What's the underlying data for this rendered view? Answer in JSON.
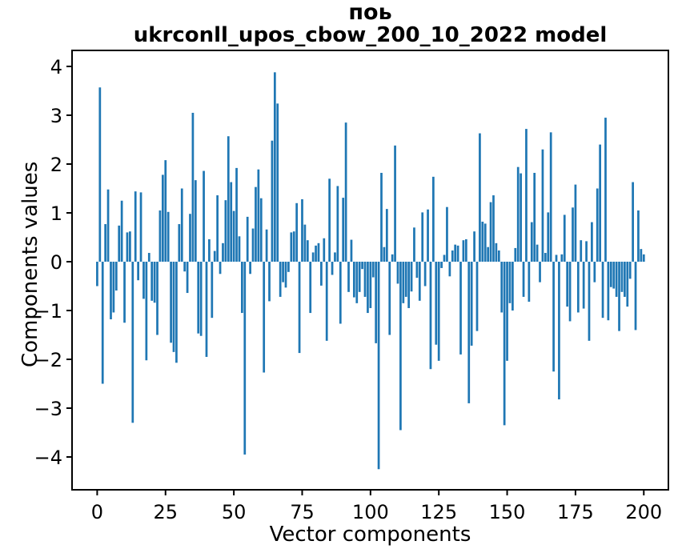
{
  "figure": {
    "title_line1": "поь",
    "title_line2": "ukrconll_upos_cbow_200_10_2022 model"
  },
  "chart_data": {
    "type": "bar",
    "title": "поь — ukrconll_upos_cbow_200_10_2022 model",
    "xlabel": "Vector components",
    "ylabel": "Components values",
    "bar_color": "#1f77b4",
    "axis_color": "#000000",
    "background_color": "#ffffff",
    "grid": false,
    "legend": null,
    "xlim": [
      -9.2,
      209.0
    ],
    "ylim": [
      -4.672,
      4.328
    ],
    "xticks": [
      0,
      25,
      50,
      75,
      100,
      125,
      150,
      175,
      200
    ],
    "yticks": [
      -4,
      -3,
      -2,
      -1,
      0,
      1,
      2,
      3,
      4
    ],
    "x_start_index": 0,
    "values": [
      -0.5,
      3.57,
      -2.5,
      0.77,
      1.48,
      -1.18,
      -1.04,
      -0.59,
      0.74,
      1.25,
      -1.25,
      0.6,
      0.62,
      -3.3,
      1.44,
      -0.38,
      1.42,
      -0.76,
      -2.02,
      0.18,
      -0.8,
      -0.84,
      -1.5,
      1.05,
      1.78,
      2.08,
      1.02,
      -1.66,
      -1.85,
      -2.07,
      0.77,
      1.5,
      -0.2,
      -0.64,
      0.98,
      3.05,
      1.67,
      -1.47,
      -1.52,
      1.86,
      -1.95,
      0.46,
      -1.15,
      0.22,
      1.36,
      -0.25,
      0.38,
      1.26,
      2.57,
      1.63,
      1.04,
      1.92,
      0.52,
      -1.05,
      -3.95,
      0.92,
      -0.25,
      0.68,
      1.53,
      1.89,
      1.3,
      -2.27,
      0.66,
      -0.81,
      2.48,
      3.88,
      3.24,
      -0.72,
      -0.42,
      -0.53,
      -0.21,
      0.6,
      0.62,
      1.2,
      -1.87,
      1.28,
      0.76,
      0.44,
      -1.05,
      0.19,
      0.33,
      0.38,
      -0.49,
      0.48,
      -1.62,
      1.7,
      -0.27,
      0.19,
      1.55,
      -1.27,
      1.31,
      2.85,
      -0.62,
      0.45,
      -0.73,
      -0.85,
      -0.62,
      -0.15,
      -0.72,
      -1.05,
      -0.95,
      -0.32,
      -1.67,
      -4.25,
      1.82,
      0.3,
      1.08,
      -1.5,
      0.15,
      2.38,
      -0.45,
      -3.45,
      -0.85,
      -0.72,
      -0.95,
      -0.61,
      0.7,
      -0.33,
      -0.8,
      1.01,
      -0.5,
      1.07,
      -2.2,
      1.74,
      -1.7,
      -2.03,
      -0.13,
      0.14,
      1.12,
      -0.3,
      0.23,
      0.35,
      0.33,
      -1.9,
      0.44,
      0.46,
      -2.9,
      -1.72,
      0.62,
      -1.42,
      2.63,
      0.82,
      0.78,
      0.3,
      1.22,
      1.36,
      0.38,
      0.23,
      -1.04,
      -3.35,
      -2.03,
      -0.85,
      -1.0,
      0.28,
      1.94,
      1.81,
      -0.72,
      2.72,
      -0.82,
      0.81,
      1.82,
      0.35,
      -0.42,
      2.3,
      0.18,
      1.01,
      2.65,
      -2.25,
      0.14,
      -2.82,
      0.15,
      0.96,
      -0.92,
      -1.22,
      1.11,
      1.58,
      -1.04,
      0.44,
      -0.96,
      0.42,
      -1.62,
      0.81,
      -0.42,
      1.5,
      2.4,
      -1.15,
      2.95,
      -1.2,
      -0.52,
      -0.55,
      -0.72,
      -1.42,
      -0.62,
      -0.72,
      -0.92,
      -0.35,
      1.63,
      -1.4,
      1.05,
      0.26,
      0.15
    ]
  }
}
